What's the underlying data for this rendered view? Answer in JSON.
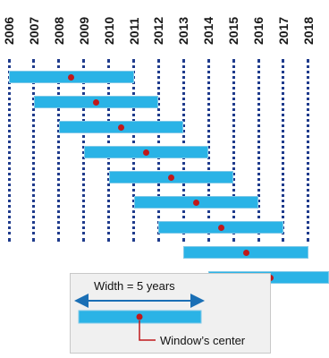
{
  "years": [
    "2006",
    "2007",
    "2008",
    "2009",
    "2010",
    "2011",
    "2012",
    "2013",
    "2014",
    "2015",
    "2016",
    "2017",
    "2018"
  ],
  "windows": [
    {
      "start": 2006,
      "end": 2011,
      "center": 2008.5
    },
    {
      "start": 2007,
      "end": 2012,
      "center": 2009.5
    },
    {
      "start": 2008,
      "end": 2013,
      "center": 2010.5
    },
    {
      "start": 2009,
      "end": 2014,
      "center": 2011.5
    },
    {
      "start": 2010,
      "end": 2015,
      "center": 2012.5
    },
    {
      "start": 2011,
      "end": 2016,
      "center": 2013.5
    },
    {
      "start": 2012,
      "end": 2017,
      "center": 2014.5
    },
    {
      "start": 2013,
      "end": 2018,
      "center": 2015.5
    },
    {
      "start": 2014,
      "end": 2019,
      "center": 2016.5
    }
  ],
  "legend": {
    "width_label": "Width = 5 years",
    "center_label": "Window’s center"
  },
  "colors": {
    "bar": "#2ab3e6",
    "center_dot": "#c0181a",
    "arrow": "#1a6fb5",
    "dotted_line": "#1f3b8c"
  }
}
